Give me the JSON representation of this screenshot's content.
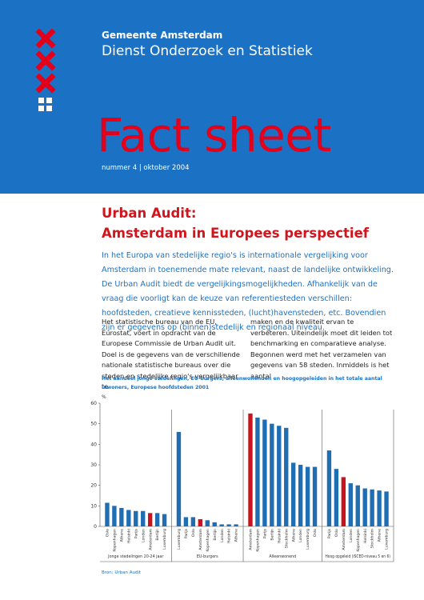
{
  "header": {
    "organisation": "Gemeente Amsterdam",
    "department": "Dienst Onderzoek en Statistiek",
    "title": "Fact sheet",
    "issue": "nummer 4 | oktober 2004"
  },
  "article": {
    "title_lines": [
      "Urban Audit:",
      "Amsterdam in Europees perspectief"
    ],
    "intro": "In het Europa van stedelijke regio's is internationale vergelijking voor Amsterdam in toenemende mate relevant, naast de landelijke ontwikkeling. De Urban Audit biedt de vergelijkingsmogelijkheden. Afhankelijk van de vraag die voorligt kan de keuze van referentiesteden verschillen: hoofdsteden, creatieve kennissteden, (lucht)havensteden, etc. Bovendien zijn er gegevens op (binnen)stedelijk en regionaal niveau.",
    "columns": [
      "Het statistische bureau van de EU, Eurostat, voert in opdracht van de Europese Commissie de Urban Audit uit. Doel is de gegevens van de verschillende nationale statistische bureaus over die steden en stedelijke regio's vergelijkbaar te",
      "maken en de kwaliteit ervan te verbeteren. Uiteindelijk moet dit leiden tot benchmarking en comparatieve analyse. Begonnen werd met het verzamelen van gegevens van 58 steden. Inmiddels is het aantal"
    ],
    "source": "Bron: Urban Audit"
  },
  "chart_data": {
    "type": "bar",
    "title": "Het aandeel jonge stedelingen, EU-burgers, alleenwonenden en hoogopgeleiden in het totale aantal inwoners, Europese hoofdsteden 2001",
    "y_label": "%",
    "ylim": [
      0,
      60
    ],
    "yticks": [
      0,
      10,
      20,
      30,
      40,
      50,
      60
    ],
    "color": "#1f6db3",
    "highlight": "Amsterdam",
    "highlight_color": "#c8141e",
    "groups": [
      {
        "name": "Jonge stedelingen 20-24 jaar",
        "categories": [
          "Oslo",
          "Kopenhagen",
          "Athene",
          "Helsinki",
          "Parijs",
          "Londen",
          "Amsterdam",
          "Berlijn",
          "Luxemburg"
        ],
        "values": [
          11.5,
          10,
          9,
          8,
          7.5,
          7.5,
          6.5,
          6.5,
          6
        ]
      },
      {
        "name": "EU-burgers",
        "categories": [
          "Luxemburg",
          "Parijs",
          "Oslo",
          "Amsterdam",
          "Kopenhagen",
          "Berlijn",
          "Londen",
          "Helsinki",
          "Athene"
        ],
        "values": [
          46,
          4.5,
          4.5,
          3.5,
          3,
          2,
          1,
          1,
          1
        ]
      },
      {
        "name": "Alleenwonend",
        "categories": [
          "Amsterdam",
          "Kopenhagen",
          "Parijs",
          "Berlijn",
          "Helsinki",
          "Stockholm",
          "Athene",
          "Londen",
          "Luxemburg",
          "Oslo"
        ],
        "values": [
          55,
          53,
          52,
          50,
          49,
          48,
          31,
          30,
          29,
          29
        ]
      },
      {
        "name": "Hoog opgeleid (ISCED-niveau 5 en 6)",
        "categories": [
          "Parijs",
          "Oslo",
          "Amsterdam",
          "Londen",
          "Kopenhagen",
          "Helsinki",
          "Stockholm",
          "Athene",
          "Luxemburg"
        ],
        "values": [
          37,
          28,
          24,
          21,
          20,
          18.5,
          18,
          17.5,
          17
        ]
      }
    ]
  }
}
